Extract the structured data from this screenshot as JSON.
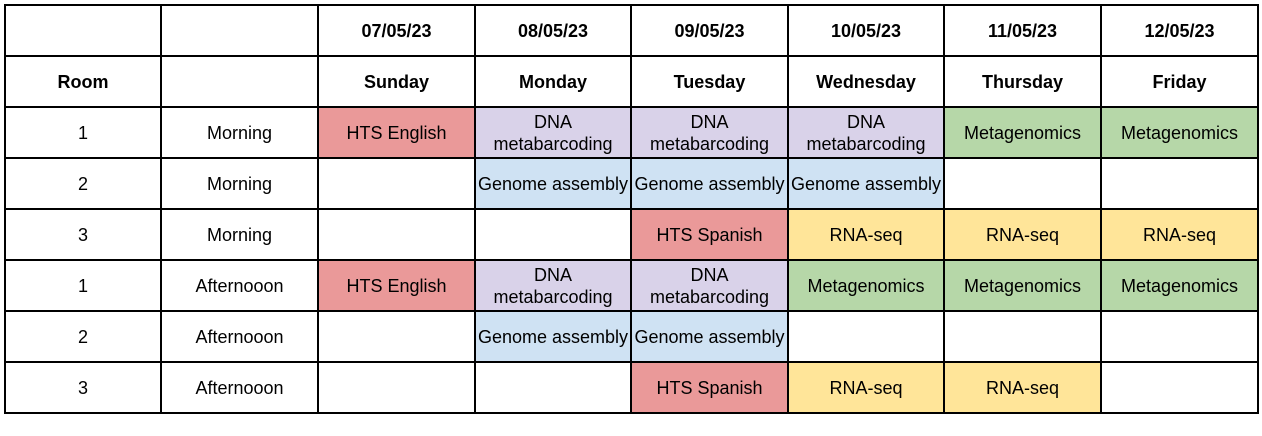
{
  "header": {
    "dates": [
      "",
      "",
      "07/05/23",
      "08/05/23",
      "09/05/23",
      "10/05/23",
      "11/05/23",
      "12/05/23"
    ],
    "days": [
      "Room",
      "",
      "Sunday",
      "Monday",
      "Tuesday",
      "Wednesday",
      "Thursday",
      "Friday"
    ]
  },
  "colors": {
    "hts": "#ea9999",
    "dna": "#d9d2e9",
    "genome": "#cfe2f3",
    "rna": "#ffe599",
    "meta": "#b6d7a8",
    "none": "#ffffff"
  },
  "rows": [
    {
      "room": "1",
      "session": "Morning",
      "cells": [
        {
          "text": "HTS English",
          "color": "hts"
        },
        {
          "text": "DNA metabarcoding",
          "color": "dna"
        },
        {
          "text": "DNA metabarcoding",
          "color": "dna"
        },
        {
          "text": "DNA metabarcoding",
          "color": "dna"
        },
        {
          "text": "Metagenomics",
          "color": "meta"
        },
        {
          "text": "Metagenomics",
          "color": "meta"
        }
      ]
    },
    {
      "room": "2",
      "session": "Morning",
      "cells": [
        {
          "text": "",
          "color": "none"
        },
        {
          "text": "Genome assembly",
          "color": "genome"
        },
        {
          "text": "Genome assembly",
          "color": "genome"
        },
        {
          "text": "Genome assembly",
          "color": "genome"
        },
        {
          "text": "",
          "color": "none"
        },
        {
          "text": "",
          "color": "none"
        }
      ]
    },
    {
      "room": "3",
      "session": "Morning",
      "cells": [
        {
          "text": "",
          "color": "none"
        },
        {
          "text": "",
          "color": "none"
        },
        {
          "text": "HTS Spanish",
          "color": "hts"
        },
        {
          "text": "RNA-seq",
          "color": "rna"
        },
        {
          "text": "RNA-seq",
          "color": "rna"
        },
        {
          "text": "RNA-seq",
          "color": "rna"
        }
      ]
    },
    {
      "room": "1",
      "session": "Afternooon",
      "cells": [
        {
          "text": "HTS English",
          "color": "hts"
        },
        {
          "text": "DNA metabarcoding",
          "color": "dna"
        },
        {
          "text": "DNA metabarcoding",
          "color": "dna"
        },
        {
          "text": "Metagenomics",
          "color": "meta"
        },
        {
          "text": "Metagenomics",
          "color": "meta"
        },
        {
          "text": "Metagenomics",
          "color": "meta"
        }
      ]
    },
    {
      "room": "2",
      "session": "Afternooon",
      "cells": [
        {
          "text": "",
          "color": "none"
        },
        {
          "text": "Genome assembly",
          "color": "genome"
        },
        {
          "text": "Genome assembly",
          "color": "genome"
        },
        {
          "text": "",
          "color": "none"
        },
        {
          "text": "",
          "color": "none"
        },
        {
          "text": "",
          "color": "none"
        }
      ]
    },
    {
      "room": "3",
      "session": "Afternooon",
      "cells": [
        {
          "text": "",
          "color": "none"
        },
        {
          "text": "",
          "color": "none"
        },
        {
          "text": "HTS Spanish",
          "color": "hts"
        },
        {
          "text": "RNA-seq",
          "color": "rna"
        },
        {
          "text": "RNA-seq",
          "color": "rna"
        },
        {
          "text": "",
          "color": "none"
        }
      ]
    }
  ]
}
